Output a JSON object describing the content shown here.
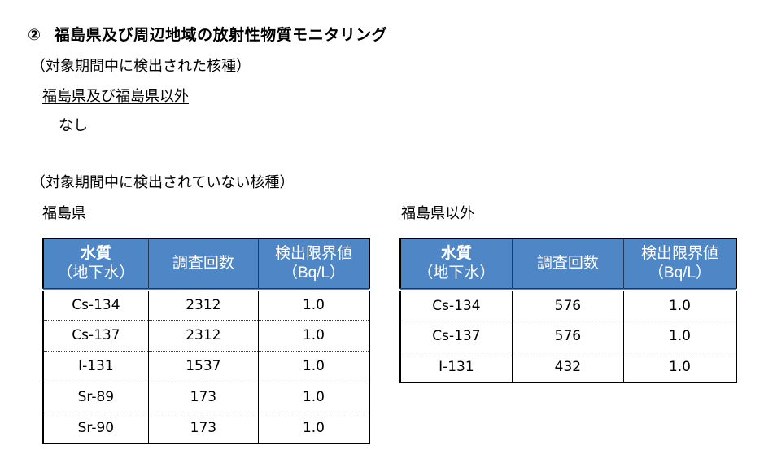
{
  "heading": {
    "number": "②",
    "title": "福島県及び周辺地域の放射性物質モニタリング"
  },
  "detected": {
    "label": "（対象期間中に検出された核種）",
    "region": "福島県及び福島県以外",
    "value": "なし"
  },
  "not_detected": {
    "label": "（対象期間中に検出されていない核種）"
  },
  "fukushima": {
    "title": "福島県",
    "headers": {
      "col1_line1": "水質",
      "col1_line2": "（地下水）",
      "col2": "調査回数",
      "col3_line1": "検出限界値",
      "col3_line2": "（Bq/L）"
    },
    "rows": [
      {
        "nuclide": "Cs-134",
        "count": "2312",
        "limit": "1.0"
      },
      {
        "nuclide": "Cs-137",
        "count": "2312",
        "limit": "1.0"
      },
      {
        "nuclide": "I-131",
        "count": "1537",
        "limit": "1.0"
      },
      {
        "nuclide": "Sr-89",
        "count": "173",
        "limit": "1.0"
      },
      {
        "nuclide": "Sr-90",
        "count": "173",
        "limit": "1.0"
      }
    ]
  },
  "outside": {
    "title": "福島県以外",
    "headers": {
      "col1_line1": "水質",
      "col1_line2": "（地下水）",
      "col2": "調査回数",
      "col3_line1": "検出限界値",
      "col3_line2": "（Bq/L）"
    },
    "rows": [
      {
        "nuclide": "Cs-134",
        "count": "576",
        "limit": "1.0"
      },
      {
        "nuclide": "Cs-137",
        "count": "576",
        "limit": "1.0"
      },
      {
        "nuclide": "I-131",
        "count": "432",
        "limit": "1.0"
      }
    ]
  },
  "colors": {
    "header_bg": "#4f86c6",
    "header_text": "#ffffff"
  }
}
